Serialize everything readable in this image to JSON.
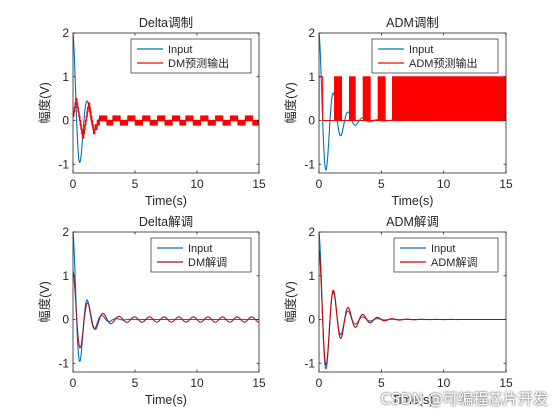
{
  "watermark": "CSDN @可编程芯片开发",
  "chart_data": [
    {
      "type": "line",
      "title": "Delta调制",
      "xlabel": "Time(s)",
      "ylabel": "幅度(V)",
      "xlim": [
        0,
        15
      ],
      "ylim": [
        -1.2,
        2
      ],
      "xticks": [
        "0",
        "5",
        "10",
        "15"
      ],
      "yticks": [
        "-1",
        "0",
        "1",
        "2"
      ],
      "legend": "top-right",
      "series": [
        {
          "name": "Input",
          "color": "#0072BD",
          "kind": "damped",
          "amp": 2.0,
          "damping": 1.3,
          "freq_hz": 0.85
        },
        {
          "name": "DM预测输出",
          "color": "#FF0000",
          "kind": "delta",
          "step": 0.1
        }
      ]
    },
    {
      "type": "line",
      "title": "ADM调制",
      "xlabel": "Time(s)",
      "ylabel": "幅度(V)",
      "xlim": [
        0,
        15
      ],
      "ylim": [
        -1.2,
        2
      ],
      "xticks": [
        "0",
        "5",
        "10",
        "15"
      ],
      "yticks": [
        "-1",
        "0",
        "1",
        "2"
      ],
      "legend": "top-right",
      "series": [
        {
          "name": "Input",
          "color": "#0072BD",
          "kind": "damped",
          "amp": 2.0,
          "damping": 1.0,
          "freq_hz": 0.85
        },
        {
          "name": "ADM预测输出",
          "color": "#FF0000",
          "kind": "binary",
          "low": 0,
          "high": 1
        }
      ]
    },
    {
      "type": "line",
      "title": "Delta解调",
      "xlabel": "Time(s)",
      "ylabel": "幅度(V)",
      "xlim": [
        0,
        15
      ],
      "ylim": [
        -1.2,
        2
      ],
      "xticks": [
        "0",
        "5",
        "10",
        "15"
      ],
      "yticks": [
        "-1",
        "0",
        "1",
        "2"
      ],
      "legend": "top-right",
      "series": [
        {
          "name": "Input",
          "color": "#0072BD",
          "kind": "damped",
          "amp": 2.0,
          "damping": 1.3,
          "freq_hz": 0.85
        },
        {
          "name": "DM解调",
          "color": "#A2142F",
          "kind": "damped_residual",
          "amp": 1.1,
          "damping": 0.9,
          "freq_hz": 0.85,
          "residual": 0.06
        }
      ]
    },
    {
      "type": "line",
      "title": "ADM解调",
      "xlabel": "Time(s)",
      "ylabel": "幅度(V)",
      "xlim": [
        0,
        15
      ],
      "ylim": [
        -1.2,
        2
      ],
      "xticks": [
        "0",
        "5",
        "10",
        "15"
      ],
      "yticks": [
        "-1",
        "0",
        "1",
        "2"
      ],
      "legend": "top-right",
      "series": [
        {
          "name": "Input",
          "color": "#0072BD",
          "kind": "damped",
          "amp": 2.0,
          "damping": 1.0,
          "freq_hz": 0.85
        },
        {
          "name": "ADM解调",
          "color": "#D10000",
          "kind": "damped",
          "amp": 1.6,
          "damping": 0.75,
          "freq_hz": 0.85
        }
      ]
    }
  ]
}
